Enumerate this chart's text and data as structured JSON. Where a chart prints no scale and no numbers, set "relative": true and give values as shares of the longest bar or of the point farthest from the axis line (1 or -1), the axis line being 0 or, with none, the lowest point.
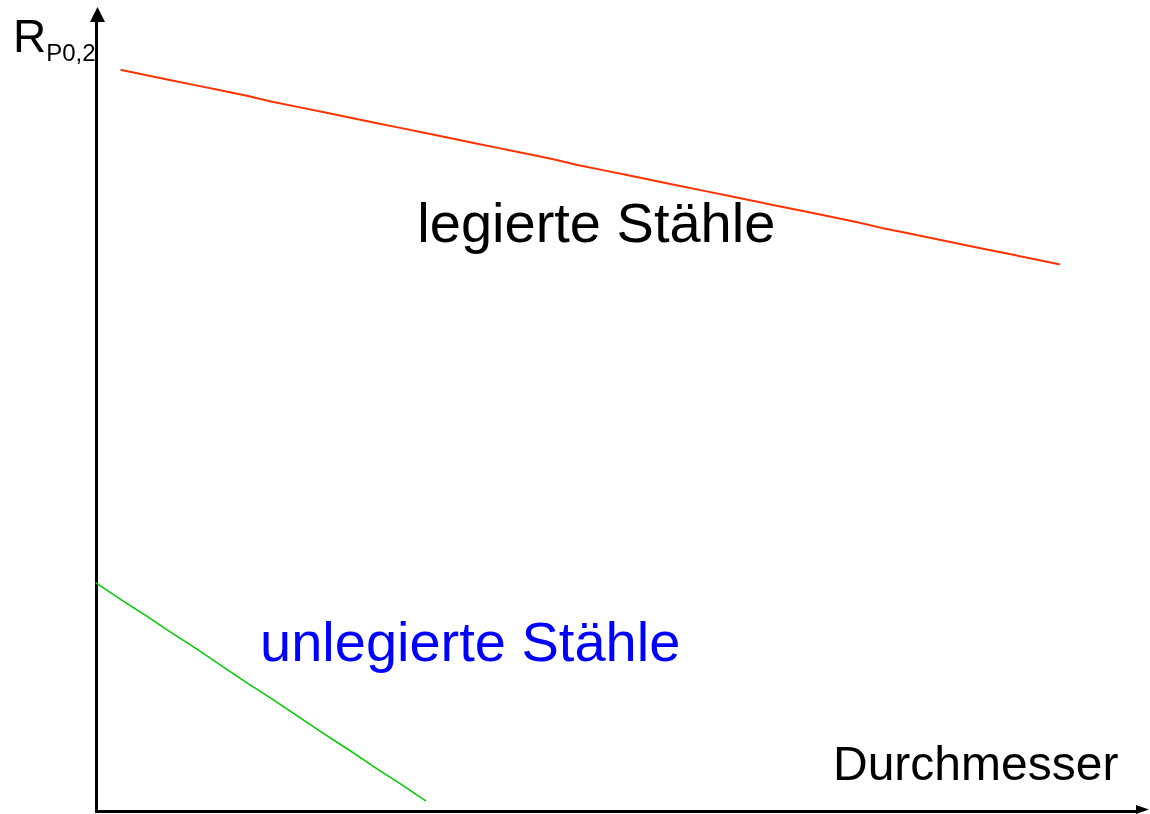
{
  "chart_data": {
    "type": "line",
    "ylabel": "R$_{P0,2}$",
    "xlabel": "Durchmesser",
    "relative": true,
    "categories": [
      null,
      null,
      null,
      null,
      null,
      null,
      null,
      null,
      null,
      null,
      null,
      null,
      null,
      null,
      null,
      null,
      null,
      null,
      null,
      null,
      null,
      null,
      null,
      null,
      null,
      null,
      null,
      null,
      null,
      null,
      null,
      null,
      null,
      null,
      null,
      null,
      null,
      null,
      null,
      null,
      null,
      null
    ],
    "series": [
      {
        "name": "legierte Stähle",
        "color": "#ff3300",
        "values": [
          null,
          1.0,
          0.993,
          0.986,
          0.979,
          0.972,
          0.965,
          0.957,
          0.95,
          0.943,
          0.936,
          0.929,
          0.922,
          0.915,
          0.908,
          0.901,
          0.894,
          0.887,
          0.88,
          0.872,
          0.865,
          0.858,
          0.851,
          0.844,
          0.837,
          0.83,
          0.823,
          0.816,
          0.809,
          0.802,
          0.795,
          0.787,
          0.78,
          0.773,
          0.766,
          0.759,
          0.752,
          0.745,
          0.738,
          null,
          null,
          null
        ]
      },
      {
        "name": "unlegierte Stähle",
        "color": "#00cc00",
        "values": [
          0.308,
          0.285,
          0.263,
          0.24,
          0.218,
          0.195,
          0.172,
          0.15,
          0.127,
          0.104,
          0.082,
          0.059,
          0.037,
          0.014,
          null,
          null,
          null,
          null,
          null,
          null,
          null,
          null,
          null,
          null,
          null,
          null,
          null,
          null,
          null,
          null,
          null,
          null,
          null,
          null,
          null,
          null,
          null,
          null,
          null,
          null,
          null,
          null
        ]
      }
    ]
  }
}
